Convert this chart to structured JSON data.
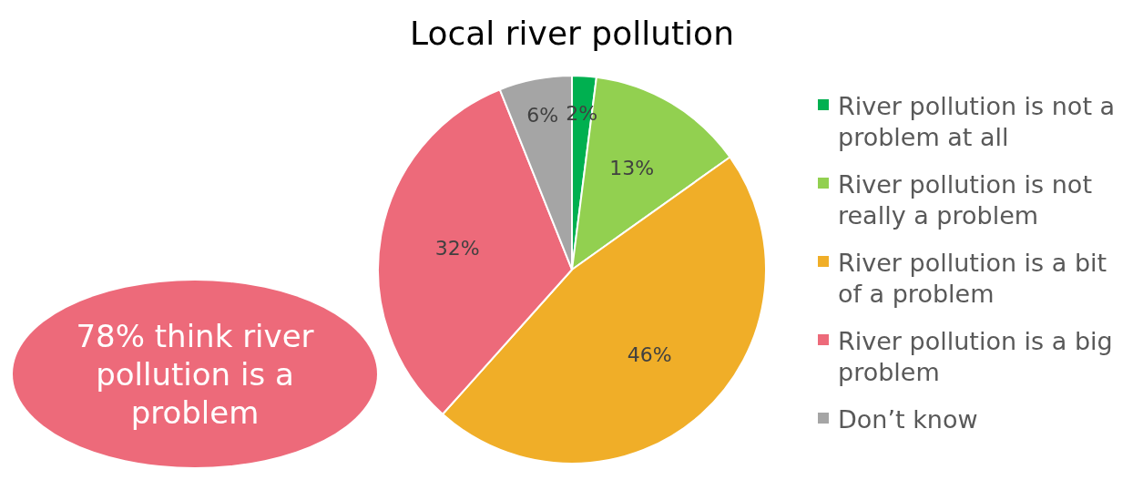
{
  "chart_data": {
    "type": "pie",
    "title": "Local river pollution",
    "categories": [
      "River pollution is not a problem at all",
      "River pollution is not really a problem",
      "River pollution is a bit of a problem",
      "River pollution is a big problem",
      "Don’t know"
    ],
    "values": [
      2,
      13,
      46,
      32,
      6
    ],
    "value_labels": [
      "2%",
      "13%",
      "46%",
      "32%",
      "6%"
    ],
    "colors": [
      "#00b050",
      "#92d050",
      "#f0ae28",
      "#ed6a7a",
      "#a5a5a5"
    ],
    "legend": "right",
    "annotations": [
      "78% think river pollution is a problem"
    ]
  }
}
